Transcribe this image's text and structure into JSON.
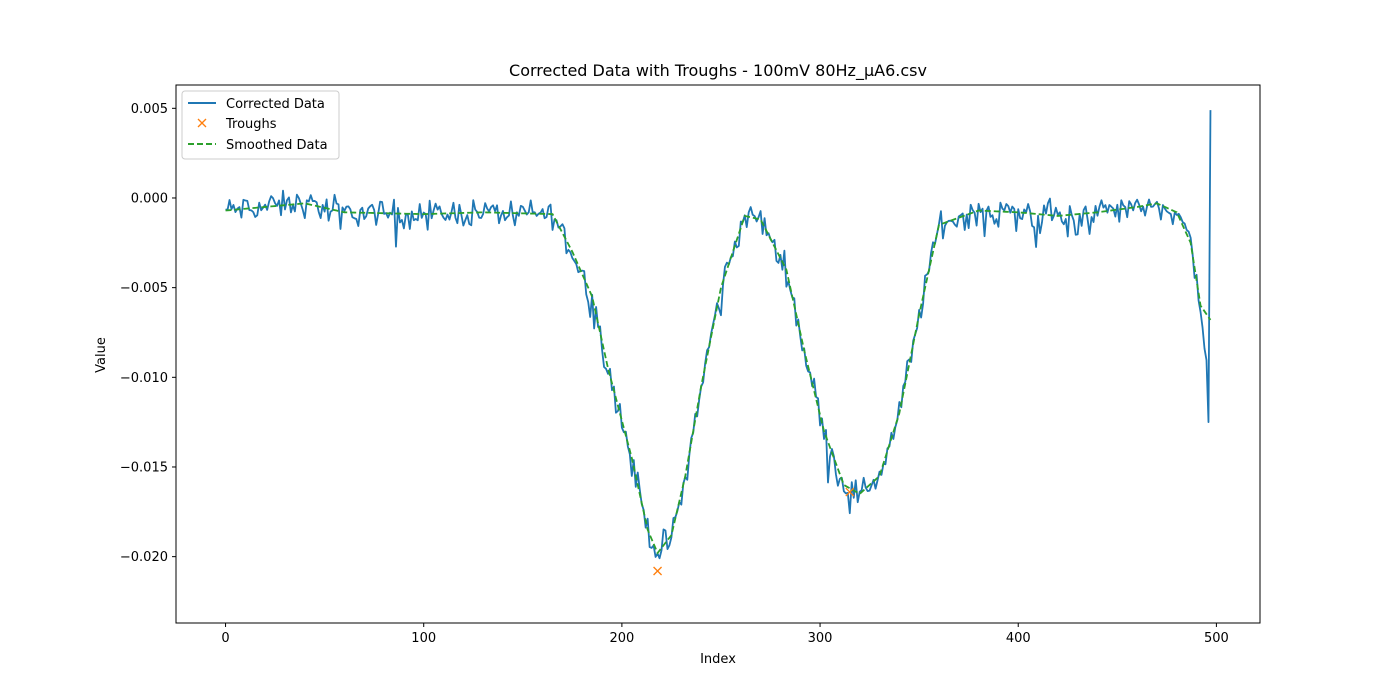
{
  "chart_data": {
    "type": "line",
    "title": "Corrected Data with Troughs - 100mV 80Hz_µA6.csv",
    "xlabel": "Index",
    "ylabel": "Value",
    "xlim": [
      -25,
      522
    ],
    "ylim": [
      -0.0237,
      0.0063
    ],
    "xticks": [
      0,
      100,
      200,
      300,
      400,
      500
    ],
    "xtick_labels": [
      "0",
      "100",
      "200",
      "300",
      "400",
      "500"
    ],
    "yticks": [
      0.005,
      0.0,
      -0.005,
      -0.01,
      -0.015,
      -0.02
    ],
    "ytick_labels": [
      "0.005",
      "0.000",
      "−0.005",
      "−0.010",
      "−0.015",
      "−0.020"
    ],
    "grid": false,
    "legend_placement": "upper-left",
    "series": [
      {
        "name": "Corrected Data",
        "style": "line",
        "color": "#1f77b4",
        "anchors_x": [
          0,
          10,
          40,
          60,
          100,
          130,
          165,
          175,
          185,
          193,
          205,
          213,
          218,
          225,
          232,
          240,
          250,
          262,
          270,
          283,
          292,
          302,
          312,
          320,
          330,
          340,
          350,
          360,
          380,
          400,
          420,
          440,
          460,
          470,
          480,
          487,
          492,
          495,
          496,
          497
        ],
        "anchors_y": [
          -0.0007,
          -0.0006,
          -0.0003,
          -0.0008,
          -0.0009,
          -0.0008,
          -0.0009,
          -0.003,
          -0.0055,
          -0.0095,
          -0.0145,
          -0.0185,
          -0.0198,
          -0.0188,
          -0.0155,
          -0.0105,
          -0.005,
          -0.001,
          -0.0012,
          -0.004,
          -0.0085,
          -0.013,
          -0.016,
          -0.0165,
          -0.0155,
          -0.012,
          -0.0065,
          -0.0015,
          -0.0007,
          -0.0008,
          -0.001,
          -0.0008,
          -0.0005,
          -0.0003,
          -0.0008,
          -0.0025,
          -0.006,
          -0.009,
          -0.0125,
          0.0049
        ],
        "noise": 0.0011
      },
      {
        "name": "Troughs",
        "style": "marker",
        "color": "#ff7f0e",
        "x": [
          218,
          315
        ],
        "y": [
          -0.0208,
          -0.0164
        ]
      },
      {
        "name": "Smoothed Data",
        "style": "dashed",
        "color": "#2ca02c",
        "x": [
          0,
          10,
          40,
          60,
          100,
          130,
          165,
          175,
          185,
          193,
          205,
          213,
          218,
          225,
          232,
          240,
          250,
          262,
          270,
          283,
          292,
          302,
          312,
          320,
          330,
          340,
          350,
          360,
          380,
          400,
          420,
          440,
          460,
          470,
          480,
          487,
          492,
          497
        ],
        "y": [
          -0.0007,
          -0.0006,
          -0.0003,
          -0.0008,
          -0.0009,
          -0.0008,
          -0.0009,
          -0.003,
          -0.0055,
          -0.0095,
          -0.0145,
          -0.0185,
          -0.0198,
          -0.0188,
          -0.0155,
          -0.0105,
          -0.005,
          -0.001,
          -0.0012,
          -0.004,
          -0.0085,
          -0.013,
          -0.016,
          -0.0165,
          -0.0155,
          -0.012,
          -0.0065,
          -0.0015,
          -0.0007,
          -0.0008,
          -0.001,
          -0.0008,
          -0.0005,
          -0.0003,
          -0.0008,
          -0.0025,
          -0.006,
          -0.0068
        ]
      }
    ]
  }
}
